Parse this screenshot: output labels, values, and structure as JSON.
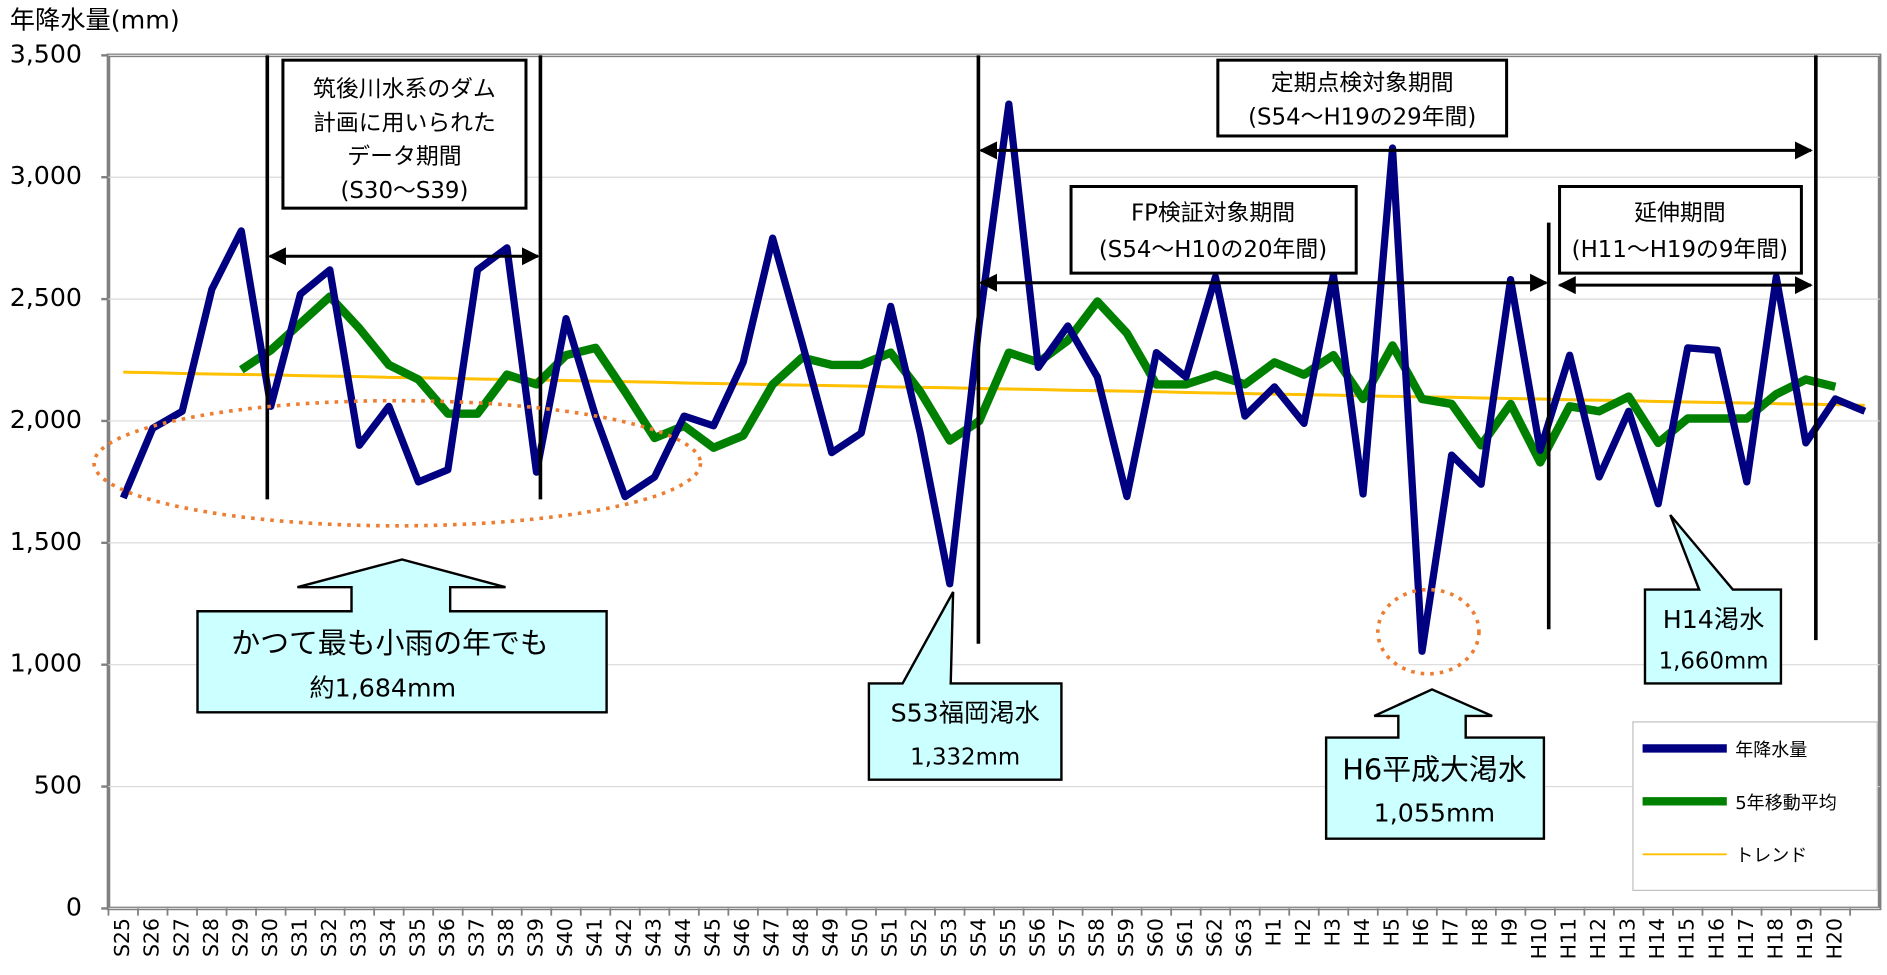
{
  "chart_data": {
    "type": "line",
    "y_axis_label": "年降水量(mm)",
    "categories": [
      "S25",
      "S26",
      "S27",
      "S28",
      "S29",
      "S30",
      "S31",
      "S32",
      "S33",
      "S34",
      "S35",
      "S36",
      "S37",
      "S38",
      "S39",
      "S40",
      "S41",
      "S42",
      "S43",
      "S44",
      "S45",
      "S46",
      "S47",
      "S48",
      "S49",
      "S50",
      "S51",
      "S52",
      "S53",
      "S54",
      "S55",
      "S56",
      "S57",
      "S58",
      "S59",
      "S60",
      "S61",
      "S62",
      "S63",
      "H1",
      "H2",
      "H3",
      "H4",
      "H5",
      "H6",
      "H7",
      "H8",
      "H9",
      "H10",
      "H11",
      "H12",
      "H13",
      "H14",
      "H15",
      "H16",
      "H17",
      "H18",
      "H19",
      "H20",
      null
    ],
    "series": [
      {
        "name": "年降水量",
        "color": "#000080",
        "width": 6,
        "values": [
          1684,
          1970,
          2040,
          2540,
          2780,
          2060,
          2520,
          2620,
          1900,
          2060,
          1750,
          1800,
          2620,
          2710,
          1790,
          2420,
          2020,
          1690,
          1770,
          2020,
          1980,
          2240,
          2750,
          2320,
          1870,
          1950,
          2470,
          1950,
          1332,
          2400,
          3300,
          2220,
          2390,
          2180,
          1690,
          2280,
          2180,
          2590,
          2020,
          2140,
          1990,
          2600,
          1700,
          3120,
          1055,
          1860,
          1740,
          2580,
          1880,
          2270,
          1770,
          2040,
          1660,
          2300,
          2290,
          1750,
          2590,
          1910,
          2090,
          2040
        ]
      },
      {
        "name": "5年移動平均",
        "color": "#008000",
        "width": 7,
        "values": [
          null,
          null,
          null,
          null,
          2210,
          2290,
          2400,
          2510,
          2380,
          2230,
          2170,
          2030,
          2030,
          2190,
          2150,
          2270,
          2300,
          2120,
          1930,
          1980,
          1890,
          1940,
          2150,
          2260,
          2230,
          2230,
          2280,
          2120,
          1920,
          2000,
          2280,
          2240,
          2330,
          2490,
          2360,
          2150,
          2150,
          2190,
          2150,
          2240,
          2190,
          2270,
          2090,
          2310,
          2090,
          2070,
          1900,
          2070,
          1830,
          2060,
          2040,
          2100,
          1910,
          2010,
          2010,
          2010,
          2110,
          2170,
          2140,
          null
        ]
      },
      {
        "name": "トレンド",
        "color": "#ffc000",
        "width": 2.5,
        "values": [
          2200,
          2198,
          2195,
          2193,
          2191,
          2189,
          2186,
          2184,
          2182,
          2179,
          2177,
          2175,
          2172,
          2170,
          2168,
          2166,
          2163,
          2161,
          2159,
          2156,
          2154,
          2152,
          2149,
          2147,
          2145,
          2143,
          2140,
          2138,
          2136,
          2133,
          2131,
          2129,
          2126,
          2124,
          2122,
          2120,
          2117,
          2115,
          2113,
          2110,
          2108,
          2106,
          2103,
          2101,
          2099,
          2097,
          2094,
          2092,
          2090,
          2087,
          2085,
          2083,
          2080,
          2078,
          2076,
          2074,
          2071,
          2069,
          2067,
          2064
        ]
      }
    ],
    "ylim": [
      0,
      3500
    ],
    "yticks": [
      0,
      500,
      {
        "value": 1000,
        "label": "1,000"
      },
      {
        "value": 1500,
        "label": "1,500"
      },
      {
        "value": 2000,
        "label": "2,000"
      },
      {
        "value": 2500,
        "label": "2,500"
      },
      {
        "value": 3000,
        "label": "3,000"
      },
      {
        "value": 3500,
        "label": "3,500"
      }
    ],
    "grid": true,
    "legend": "lower right",
    "annotations": [
      [
        "筑後川水系のダム",
        "計画に用いられた",
        "データ期間",
        "(S30〜S39)"
      ],
      [
        "定期点検対象期間",
        "(S54〜H19の29年間)"
      ],
      [
        "FP検証対象期間",
        "(S54〜H10の20年間)"
      ],
      [
        "延伸期間",
        "(H11〜H19の9年間)"
      ],
      [
        "かつて最も小雨の年でも",
        "約1,684mm"
      ],
      [
        "S53福岡渇水",
        "1,332mm"
      ],
      [
        "H6平成大渇水",
        "1,055mm"
      ],
      [
        "H14渇水",
        "1,660mm"
      ]
    ]
  }
}
